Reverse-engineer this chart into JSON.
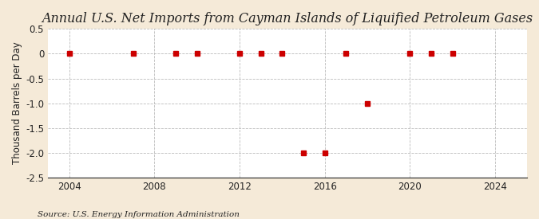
{
  "title": "Annual U.S. Net Imports from Cayman Islands of Liquified Petroleum Gases",
  "ylabel": "Thousand Barrels per Day",
  "source": "Source: U.S. Energy Information Administration",
  "fig_bg_color": "#f5ead8",
  "plot_bg_color": "#ffffff",
  "years": [
    2004,
    2007,
    2009,
    2010,
    2012,
    2013,
    2014,
    2015,
    2016,
    2017,
    2018,
    2020,
    2021,
    2022
  ],
  "values": [
    0,
    0,
    0,
    0,
    0,
    0,
    0,
    -2.0,
    -2.0,
    0,
    -1.0,
    0,
    0,
    0
  ],
  "xlim": [
    2003.0,
    2025.5
  ],
  "ylim": [
    -2.5,
    0.5
  ],
  "yticks": [
    0.5,
    0.0,
    -0.5,
    -1.0,
    -1.5,
    -2.0,
    -2.5
  ],
  "xticks": [
    2004,
    2008,
    2012,
    2016,
    2020,
    2024
  ],
  "marker_color": "#cc0000",
  "marker_size": 4,
  "grid_color": "#bbbbbb",
  "axis_color": "#222222",
  "title_fontsize": 11.5,
  "label_fontsize": 8.5,
  "tick_fontsize": 8.5,
  "source_fontsize": 7.5
}
